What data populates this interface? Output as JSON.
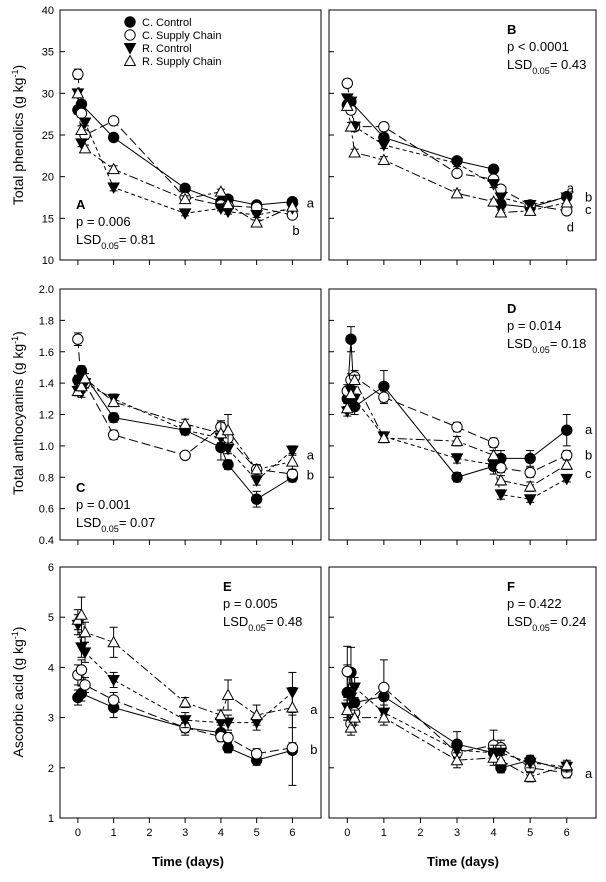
{
  "figure": {
    "xlabel": "Time (days)",
    "ylabels": {
      "phenolics": "Total phenolics (g kg",
      "anthocyanins": "Total anthocyanins (g kg",
      "ascorbic": "Ascorbic acid (g kg"
    },
    "ylabel_exp": "-1",
    "ylabel_close": ")",
    "legend": [
      {
        "key": "cc",
        "label": "C. Control"
      },
      {
        "key": "cs",
        "label": "C. Supply Chain"
      },
      {
        "key": "rc",
        "label": "R. Control"
      },
      {
        "key": "rs",
        "label": "R. Supply Chain"
      }
    ]
  },
  "chart_data": [
    {
      "type": "line",
      "panel": "A",
      "row": "phenolics",
      "p": "p = 0.006",
      "lsd_prefix": "LSD",
      "lsd_sub": "0.05",
      "lsd_value": "= 0.81",
      "ylim": [
        10,
        40
      ],
      "yticks": [
        10,
        15,
        20,
        25,
        30,
        35,
        40
      ],
      "xlim": [
        -0.5,
        6.8
      ],
      "xticks": [
        0,
        1,
        2,
        3,
        4,
        5,
        6
      ],
      "letters": [
        {
          "text": "a",
          "x": 6.4,
          "y": 16.8
        },
        {
          "text": "b",
          "x": 6.0,
          "y": 13.5
        }
      ],
      "series": [
        {
          "key": "cc",
          "x": [
            0,
            0.1,
            1,
            3,
            4,
            4.2,
            5,
            6
          ],
          "y": [
            28.0,
            28.7,
            24.7,
            18.6,
            17.0,
            17.3,
            16.6,
            17.0
          ],
          "err": [
            0.5,
            0.5,
            0.4,
            0.4,
            0.4,
            0.4,
            0.3,
            0.3
          ]
        },
        {
          "key": "cs",
          "x": [
            0,
            0.1,
            0.2,
            1,
            3,
            4,
            4.2,
            5,
            6
          ],
          "y": [
            32.3,
            27.6,
            25.0,
            26.7,
            17.5,
            16.6,
            16.5,
            16.3,
            15.4
          ],
          "err": [
            0.6,
            0.5,
            0.5,
            0.4,
            0.4,
            0.3,
            0.3,
            0.3,
            0.3
          ]
        },
        {
          "key": "rc",
          "x": [
            0,
            0.1,
            0.2,
            1,
            3,
            4,
            4.2,
            5,
            6
          ],
          "y": [
            30.0,
            24.0,
            26.5,
            18.7,
            15.6,
            16.2,
            15.8,
            15.4,
            16.2
          ],
          "err": [
            0.5,
            0.4,
            0.4,
            0.4,
            0.3,
            0.3,
            0.3,
            0.3,
            0.3
          ]
        },
        {
          "key": "rs",
          "x": [
            0,
            0.1,
            0.2,
            1,
            3,
            4,
            4.2,
            5,
            6
          ],
          "y": [
            30.0,
            25.6,
            23.4,
            20.9,
            17.3,
            18.2,
            16.7,
            14.5,
            16.4
          ],
          "err": [
            0.5,
            0.5,
            0.4,
            0.4,
            0.4,
            0.3,
            0.3,
            0.3,
            0.3
          ]
        }
      ]
    },
    {
      "type": "line",
      "panel": "B",
      "row": "phenolics",
      "p": "p < 0.0001",
      "lsd_prefix": "LSD",
      "lsd_sub": "0.05",
      "lsd_value": "= 0.43",
      "ylim": [
        10,
        40
      ],
      "yticks": [
        10,
        15,
        20,
        25,
        30,
        35,
        40
      ],
      "xlim": [
        -0.5,
        6.8
      ],
      "xticks": [
        0,
        1,
        2,
        3,
        4,
        5,
        6
      ],
      "letters": [
        {
          "text": "a",
          "x": 6.0,
          "y": 18.6
        },
        {
          "text": "b",
          "x": 6.5,
          "y": 17.5
        },
        {
          "text": "c",
          "x": 6.5,
          "y": 16.0
        },
        {
          "text": "d",
          "x": 6.0,
          "y": 13.9
        }
      ],
      "series": [
        {
          "key": "cc",
          "x": [
            0,
            0.1,
            1,
            3,
            4,
            4.2,
            5,
            6
          ],
          "y": [
            28.6,
            29.0,
            24.7,
            21.9,
            20.9,
            16.7,
            16.3,
            17.6
          ],
          "err": [
            0.5,
            0.5,
            0.5,
            0.4,
            0.4,
            0.4,
            0.3,
            0.3
          ]
        },
        {
          "key": "cs",
          "x": [
            0,
            0.1,
            0.2,
            1,
            3,
            4,
            4.2,
            5,
            6
          ],
          "y": [
            31.2,
            28.0,
            26.0,
            26.0,
            20.4,
            19.7,
            18.5,
            16.6,
            15.9
          ],
          "err": [
            0.5,
            0.5,
            0.5,
            0.5,
            0.4,
            0.4,
            0.4,
            0.3,
            0.3
          ]
        },
        {
          "key": "rc",
          "x": [
            0,
            0.1,
            0.2,
            1,
            3,
            4,
            4.2,
            5,
            6
          ],
          "y": [
            29.4,
            29.0,
            26.0,
            23.8,
            21.6,
            19.1,
            17.5,
            16.6,
            17.5
          ],
          "err": [
            0.5,
            0.5,
            0.5,
            0.4,
            0.4,
            0.4,
            0.3,
            0.3,
            0.3
          ]
        },
        {
          "key": "rs",
          "x": [
            0,
            0.1,
            0.2,
            1,
            3,
            4,
            4.2,
            5,
            6
          ],
          "y": [
            28.5,
            26.0,
            22.9,
            22.0,
            18.0,
            17.0,
            15.7,
            15.9,
            16.9
          ],
          "err": [
            0.5,
            0.5,
            0.4,
            0.4,
            0.4,
            0.3,
            0.3,
            0.3,
            0.3
          ]
        }
      ]
    },
    {
      "type": "line",
      "panel": "C",
      "row": "anthocyanins",
      "p": "p = 0.001",
      "lsd_prefix": "LSD",
      "lsd_sub": "0.05",
      "lsd_value": "= 0.07",
      "ylim": [
        0.4,
        2.0
      ],
      "yticks": [
        0.4,
        0.6,
        0.8,
        1.0,
        1.2,
        1.4,
        1.6,
        1.8,
        2.0
      ],
      "xlim": [
        -0.5,
        6.8
      ],
      "xticks": [
        0,
        1,
        2,
        3,
        4,
        5,
        6
      ],
      "letters": [
        {
          "text": "a",
          "x": 6.4,
          "y": 0.94
        },
        {
          "text": "b",
          "x": 6.4,
          "y": 0.81
        }
      ],
      "series": [
        {
          "key": "cc",
          "x": [
            0,
            0.1,
            1,
            3,
            4,
            4.2,
            5,
            6
          ],
          "y": [
            1.42,
            1.48,
            1.18,
            1.1,
            0.99,
            0.88,
            0.66,
            0.8
          ],
          "err": [
            0.03,
            0.03,
            0.03,
            0.03,
            0.08,
            0.03,
            0.05,
            0.03
          ]
        },
        {
          "key": "cs",
          "x": [
            0,
            0.1,
            0.2,
            1,
            3,
            4,
            4.2,
            5,
            6
          ],
          "y": [
            1.68,
            1.37,
            1.4,
            1.07,
            0.94,
            1.12,
            1.05,
            0.85,
            0.82
          ],
          "err": [
            0.04,
            0.03,
            0.03,
            0.03,
            0.02,
            0.03,
            0.03,
            0.03,
            0.03
          ]
        },
        {
          "key": "rc",
          "x": [
            0,
            0.1,
            0.2,
            1,
            3,
            4,
            4.2,
            5,
            6
          ],
          "y": [
            1.35,
            1.34,
            1.4,
            1.3,
            1.1,
            1.05,
            0.98,
            0.78,
            0.97
          ],
          "err": [
            0.03,
            0.03,
            0.03,
            0.03,
            0.03,
            0.03,
            0.03,
            0.03,
            0.03
          ]
        },
        {
          "key": "rs",
          "x": [
            0,
            0.1,
            0.2,
            1,
            3,
            4,
            4.2,
            5,
            6
          ],
          "y": [
            1.35,
            1.38,
            1.43,
            1.28,
            1.14,
            1.08,
            1.1,
            0.85,
            0.9
          ],
          "err": [
            0.03,
            0.03,
            0.03,
            0.03,
            0.03,
            0.08,
            0.1,
            0.03,
            0.05
          ]
        }
      ]
    },
    {
      "type": "line",
      "panel": "D",
      "row": "anthocyanins",
      "p": "p = 0.014",
      "lsd_prefix": "LSD",
      "lsd_sub": "0.05",
      "lsd_value": "= 0.18",
      "ylim": [
        0.4,
        2.0
      ],
      "yticks": [
        0.4,
        0.6,
        0.8,
        1.0,
        1.2,
        1.4,
        1.6,
        1.8,
        2.0
      ],
      "xlim": [
        -0.5,
        6.8
      ],
      "xticks": [
        0,
        1,
        2,
        3,
        4,
        5,
        6
      ],
      "letters": [
        {
          "text": "a",
          "x": 6.5,
          "y": 1.1
        },
        {
          "text": "b",
          "x": 6.5,
          "y": 0.94
        },
        {
          "text": "c",
          "x": 6.5,
          "y": 0.82
        }
      ],
      "series": [
        {
          "key": "cc",
          "x": [
            0,
            0.1,
            0.2,
            1,
            3,
            4,
            4.2,
            5,
            6
          ],
          "y": [
            1.3,
            1.68,
            1.25,
            1.38,
            0.8,
            0.87,
            0.92,
            0.92,
            1.1
          ],
          "err": [
            0.05,
            0.08,
            0.05,
            0.1,
            0.03,
            0.05,
            0.05,
            0.05,
            0.1
          ]
        },
        {
          "key": "cs",
          "x": [
            0,
            0.1,
            0.2,
            1,
            3,
            4,
            4.2,
            5,
            6
          ],
          "y": [
            1.35,
            1.42,
            1.44,
            1.31,
            1.12,
            1.02,
            0.86,
            0.83,
            0.94
          ],
          "err": [
            0.04,
            0.04,
            0.04,
            0.04,
            0.03,
            0.03,
            0.03,
            0.03,
            0.03
          ]
        },
        {
          "key": "rc",
          "x": [
            0,
            0.1,
            0.2,
            1,
            3,
            4,
            4.2,
            5,
            6
          ],
          "y": [
            1.22,
            1.35,
            1.3,
            1.06,
            0.92,
            0.88,
            0.69,
            0.66,
            0.79
          ],
          "err": [
            0.03,
            0.03,
            0.03,
            0.03,
            0.03,
            0.03,
            0.03,
            0.02,
            0.02
          ]
        },
        {
          "key": "rs",
          "x": [
            0,
            0.1,
            0.2,
            1,
            3,
            4,
            4.2,
            5,
            6
          ],
          "y": [
            1.24,
            1.33,
            1.42,
            1.05,
            1.03,
            0.94,
            0.78,
            0.74,
            0.88
          ],
          "err": [
            0.03,
            0.03,
            0.03,
            0.03,
            0.03,
            0.03,
            0.03,
            0.03,
            0.03
          ]
        }
      ]
    },
    {
      "type": "line",
      "panel": "E",
      "row": "ascorbic",
      "p": "p = 0.005",
      "lsd_prefix": "LSD",
      "lsd_sub": "0.05",
      "lsd_value": "= 0.48",
      "ylim": [
        1,
        6
      ],
      "yticks": [
        1,
        2,
        3,
        4,
        5,
        6
      ],
      "xlim": [
        -0.5,
        6.8
      ],
      "xticks": [
        0,
        1,
        2,
        3,
        4,
        5,
        6
      ],
      "letters": [
        {
          "text": "a",
          "x": 6.5,
          "y": 3.15
        },
        {
          "text": "b",
          "x": 6.5,
          "y": 2.35
        }
      ],
      "series": [
        {
          "key": "cc",
          "x": [
            0,
            0.1,
            1,
            3,
            4,
            4.2,
            5,
            6
          ],
          "y": [
            3.4,
            3.48,
            3.2,
            2.8,
            2.7,
            2.4,
            2.15,
            2.35
          ],
          "err": [
            0.15,
            0.15,
            0.2,
            0.15,
            0.15,
            0.1,
            0.1,
            0.7
          ]
        },
        {
          "key": "cs",
          "x": [
            0,
            0.1,
            0.2,
            1,
            3,
            4,
            4.2,
            5,
            6
          ],
          "y": [
            3.85,
            3.95,
            3.65,
            3.35,
            2.8,
            2.62,
            2.6,
            2.28,
            2.4
          ],
          "err": [
            0.2,
            0.2,
            0.15,
            0.15,
            0.1,
            0.1,
            0.1,
            0.1,
            0.1
          ]
        },
        {
          "key": "rc",
          "x": [
            0,
            0.1,
            0.2,
            1,
            3,
            4,
            4.2,
            5,
            6
          ],
          "y": [
            4.85,
            4.4,
            4.3,
            3.75,
            2.95,
            2.9,
            2.9,
            2.9,
            3.5
          ],
          "err": [
            0.2,
            0.2,
            0.2,
            0.15,
            0.15,
            0.15,
            0.15,
            0.15,
            0.4
          ]
        },
        {
          "key": "rs",
          "x": [
            0,
            0.1,
            0.2,
            1,
            3,
            4,
            4.2,
            5,
            6
          ],
          "y": [
            4.95,
            5.05,
            4.7,
            4.5,
            3.3,
            3.05,
            3.45,
            3.05,
            3.2
          ],
          "err": [
            0.2,
            0.35,
            0.2,
            0.3,
            0.1,
            0.1,
            0.3,
            0.2,
            0.4
          ]
        }
      ]
    },
    {
      "type": "line",
      "panel": "F",
      "row": "ascorbic",
      "p": "p = 0.422",
      "lsd_prefix": "LSD",
      "lsd_sub": "0.05",
      "lsd_value": "= 0.24",
      "ylim": [
        1,
        6
      ],
      "yticks": [
        1,
        2,
        3,
        4,
        5,
        6
      ],
      "xlim": [
        -0.5,
        6.8
      ],
      "xticks": [
        0,
        1,
        2,
        3,
        4,
        5,
        6
      ],
      "letters": [
        {
          "text": "a",
          "x": 6.5,
          "y": 1.88
        }
      ],
      "series": [
        {
          "key": "cc",
          "x": [
            0,
            0.1,
            0.2,
            1,
            3,
            4,
            4.2,
            5,
            6
          ],
          "y": [
            3.5,
            3.9,
            3.3,
            3.42,
            2.47,
            2.3,
            2.0,
            2.15,
            1.95
          ],
          "err": [
            0.55,
            0.5,
            0.3,
            0.25,
            0.25,
            0.15,
            0.1,
            0.1,
            0.1
          ]
        },
        {
          "key": "cs",
          "x": [
            0,
            0.1,
            0.2,
            1,
            3,
            4,
            4.2,
            5,
            6
          ],
          "y": [
            3.92,
            2.88,
            3.1,
            3.6,
            2.3,
            2.45,
            2.4,
            2.0,
            1.9
          ],
          "err": [
            0.5,
            0.15,
            0.15,
            0.55,
            0.2,
            0.3,
            0.15,
            0.1,
            0.1
          ]
        },
        {
          "key": "rc",
          "x": [
            0,
            0.1,
            0.2,
            1,
            3,
            4,
            4.2,
            5,
            6
          ],
          "y": [
            3.2,
            3.4,
            3.6,
            3.1,
            2.35,
            2.3,
            2.3,
            2.1,
            2.02
          ],
          "err": [
            0.2,
            0.2,
            0.2,
            0.15,
            0.15,
            0.15,
            0.15,
            0.1,
            0.1
          ]
        },
        {
          "key": "rs",
          "x": [
            0,
            0.1,
            0.2,
            1,
            3,
            4,
            4.2,
            5,
            6
          ],
          "y": [
            3.15,
            2.8,
            3.0,
            3.0,
            2.15,
            2.2,
            2.15,
            1.82,
            2.05
          ],
          "err": [
            0.2,
            0.15,
            0.15,
            0.15,
            0.15,
            0.15,
            0.15,
            0.1,
            0.1
          ]
        }
      ]
    }
  ]
}
